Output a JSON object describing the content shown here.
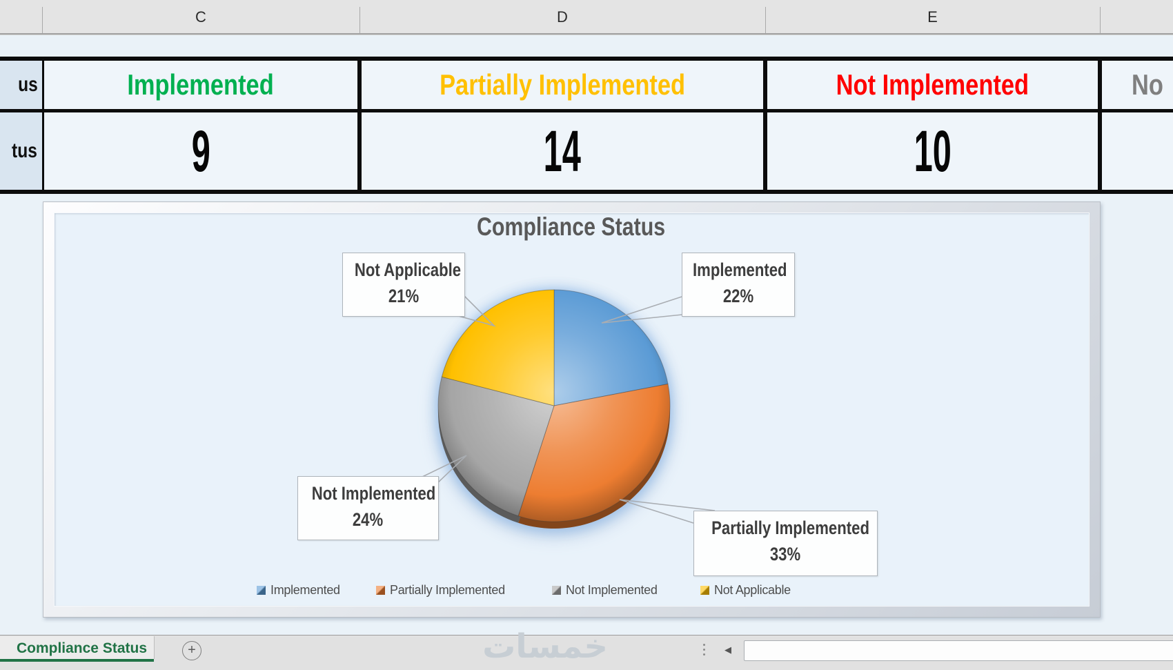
{
  "spreadsheet": {
    "column_headers": [
      "C",
      "D",
      "E"
    ],
    "row_label_fragments": [
      "us",
      "tus"
    ],
    "statuses": [
      {
        "label": "Implemented",
        "value": "9",
        "color": "#00B050"
      },
      {
        "label": "Partially Implemented",
        "value": "14",
        "color": "#FFC000"
      },
      {
        "label": "Not Implemented",
        "value": "10",
        "color": "#FF0000"
      },
      {
        "label": "No",
        "value": "",
        "color": "#7F7F7F"
      }
    ]
  },
  "chart_data": {
    "type": "pie",
    "title": "Compliance Status",
    "categories": [
      "Implemented",
      "Partially Implemented",
      "Not Implemented",
      "Not Applicable"
    ],
    "values": [
      22,
      33,
      24,
      21
    ],
    "unit": "percent",
    "colors": [
      "#5B9BD5",
      "#ED7D31",
      "#A5A5A5",
      "#FFC000"
    ],
    "legend_position": "bottom",
    "start_angle_deg": 0,
    "callouts": [
      {
        "name": "Not Applicable",
        "pct": "21%"
      },
      {
        "name": "Implemented",
        "pct": "22%"
      },
      {
        "name": "Not Implemented",
        "pct": "24%"
      },
      {
        "name": "Partially Implemented",
        "pct": "33%"
      }
    ]
  },
  "tabbar": {
    "active_tab": "Compliance Status",
    "add_sheet_label": "+",
    "watermark": "خمسات",
    "accent": "#217346"
  }
}
